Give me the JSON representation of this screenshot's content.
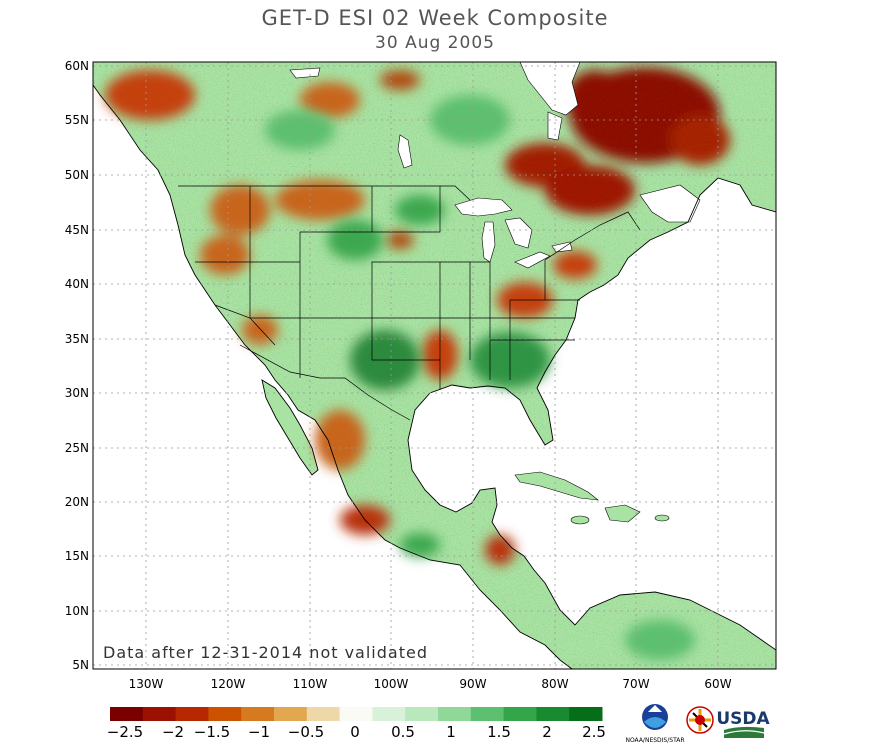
{
  "title": "GET-D ESI 02 Week Composite",
  "subtitle": "30 Aug 2005",
  "note": "Data after 12-31-2014 not validated",
  "lat_labels": [
    "60N",
    "55N",
    "50N",
    "45N",
    "40N",
    "35N",
    "30N",
    "25N",
    "20N",
    "15N",
    "10N",
    "5N"
  ],
  "lon_labels": [
    "130W",
    "120W",
    "110W",
    "100W",
    "90W",
    "80W",
    "70W",
    "60W"
  ],
  "colorbar": {
    "labels": [
      "−2.5",
      "−2",
      "−1.5",
      "−1",
      "−0.5",
      "0",
      "0.5",
      "1",
      "1.5",
      "2",
      "2.5"
    ],
    "colors": [
      "#7a0000",
      "#9c1000",
      "#b82800",
      "#cc5200",
      "#d67a20",
      "#e2a850",
      "#efd8a8",
      "#fbfbf6",
      "#d8f2da",
      "#b8e8bc",
      "#90d898",
      "#5cc070",
      "#35a54a",
      "#1a8a30",
      "#066e18"
    ]
  },
  "logos": {
    "noaa_caption": "NOAA/NESDIS/STAR",
    "usda": "USDA"
  },
  "map_colors": {
    "ocean": "#ffffff",
    "land_base": "#a9e3a4",
    "dry": "#c4400e",
    "very_dry": "#8a0f00",
    "wet": "#3aa850",
    "very_wet": "#1d7d2e",
    "border": "#000000"
  }
}
